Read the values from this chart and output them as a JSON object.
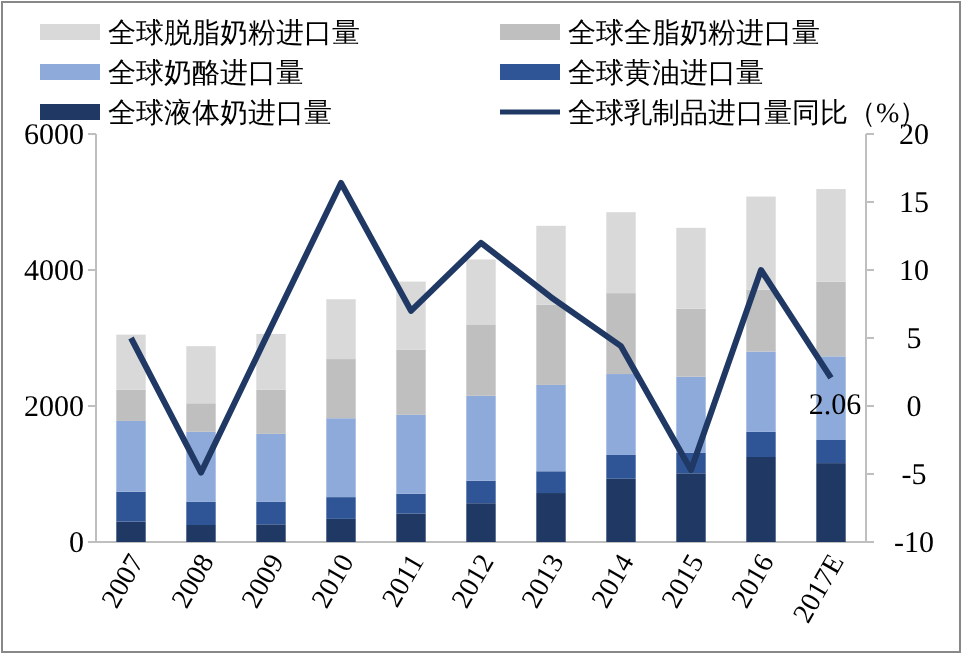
{
  "chart_data": {
    "type": "bar",
    "stacked": true,
    "legend": "top",
    "categories": [
      "2007",
      "2008",
      "2009",
      "2010",
      "2011",
      "2012",
      "2013",
      "2014",
      "2015",
      "2016",
      "2017E"
    ],
    "ylim": [
      0,
      6000
    ],
    "yticks": [
      0,
      2000,
      4000,
      6000
    ],
    "y2lim": [
      -10,
      20
    ],
    "y2ticks": [
      -10,
      -5,
      0,
      5,
      10,
      15,
      20
    ],
    "series": [
      {
        "name": "全球液体奶进口量",
        "color": "#1f3864",
        "values": [
          300,
          250,
          260,
          340,
          420,
          570,
          720,
          930,
          1010,
          1250,
          1160
        ]
      },
      {
        "name": "全球黄油进口量",
        "color": "#2f5597",
        "values": [
          440,
          340,
          330,
          320,
          290,
          330,
          320,
          350,
          300,
          370,
          340
        ]
      },
      {
        "name": "全球奶酪进口量",
        "color": "#8eaadb",
        "values": [
          1040,
          1030,
          1000,
          1160,
          1160,
          1250,
          1270,
          1190,
          1120,
          1180,
          1230
        ]
      },
      {
        "name": "全球全脂奶粉进口量",
        "color": "#bfbfbf",
        "values": [
          460,
          420,
          650,
          870,
          960,
          1050,
          1180,
          1190,
          1000,
          910,
          1100
        ]
      },
      {
        "name": "全球脱脂奶粉进口量",
        "color": "#d9d9d9",
        "values": [
          810,
          840,
          820,
          880,
          1000,
          955,
          1160,
          1190,
          1190,
          1370,
          1360
        ]
      },
      {
        "name": "全球乳制品进口量同比（%）",
        "type": "line",
        "axis": "y2",
        "color": "#1f3864",
        "values": [
          5.0,
          -4.9,
          5.8,
          16.4,
          7.0,
          12.0,
          8.0,
          4.4,
          -4.7,
          10.0,
          2.06
        ],
        "value_labels": [
          null,
          null,
          null,
          null,
          null,
          null,
          null,
          null,
          null,
          null,
          "2.06"
        ]
      }
    ]
  }
}
